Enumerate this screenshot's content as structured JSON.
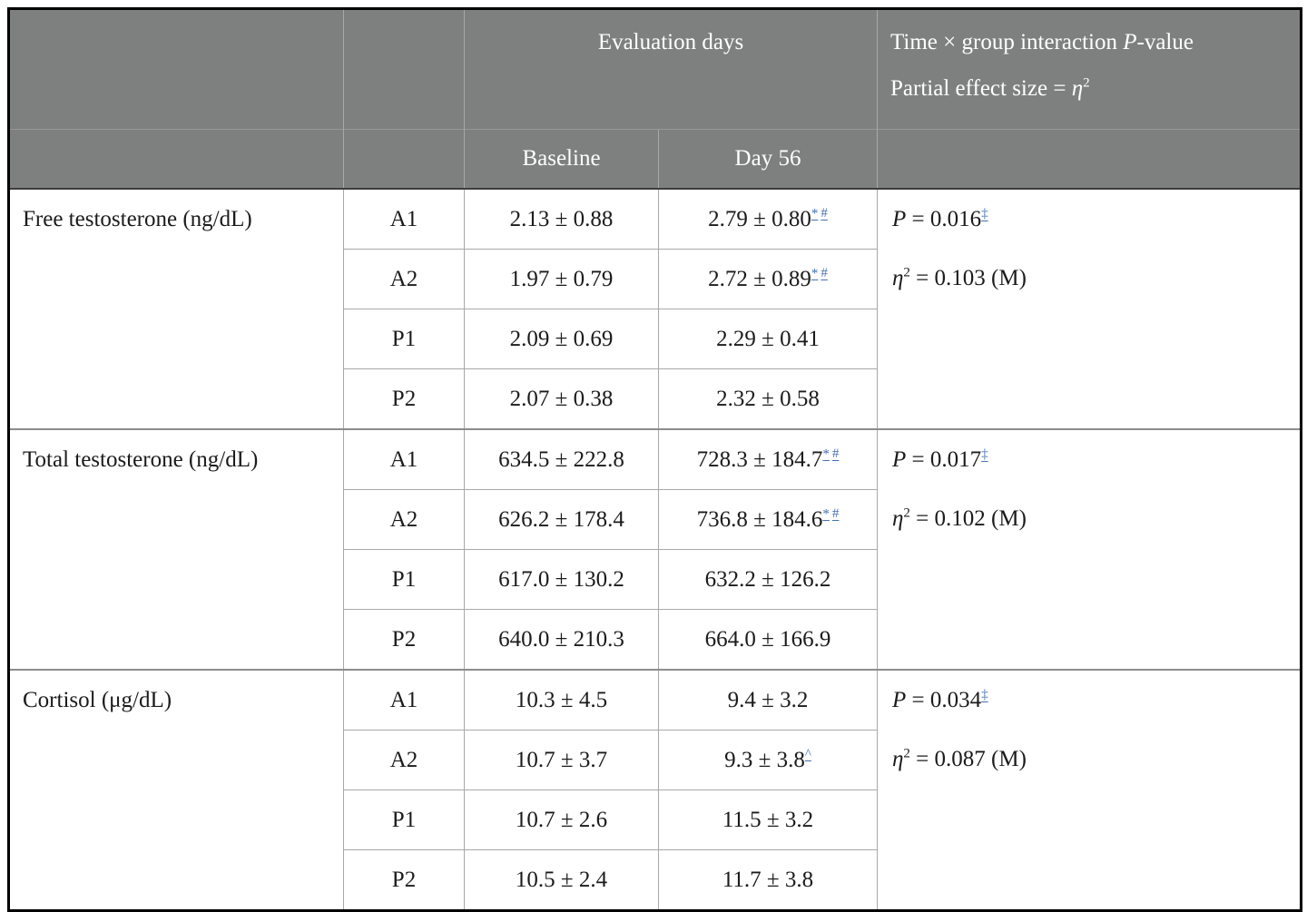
{
  "colors": {
    "header_bg": "#7e7f7f",
    "header_text": "#ffffff",
    "body_text": "#1b1b1b",
    "footnote_link_blue": "#4470b0",
    "grid_line": "#a8a8a8",
    "outer_border": "#000000"
  },
  "header": {
    "evaluation_days": "Evaluation days",
    "interaction_pre": "Time × group interaction ",
    "interaction_p": "P",
    "interaction_post": "-value",
    "effect_pre": "Partial effect size = ",
    "effect_eta": "η",
    "effect_exp": "2",
    "baseline": "Baseline",
    "day56": "Day 56"
  },
  "sections": [
    {
      "measure": "Free testosterone (ng/dL)",
      "p_label": "P",
      "p_rest": " = 0.016",
      "p_sup": "‡",
      "eta_label": "η",
      "eta_exp": "2",
      "eta_rest": " = 0.103 (M)",
      "rows": [
        {
          "group": "A1",
          "baseline": "2.13 ± 0.88",
          "day56": "2.79 ± 0.80",
          "day56_sup1": "*",
          "day56_sup2": "#"
        },
        {
          "group": "A2",
          "baseline": "1.97 ± 0.79",
          "day56": "2.72 ± 0.89",
          "day56_sup1": "*",
          "day56_sup2": "#"
        },
        {
          "group": "P1",
          "baseline": "2.09 ± 0.69",
          "day56": "2.29 ± 0.41"
        },
        {
          "group": "P2",
          "baseline": "2.07 ± 0.38",
          "day56": "2.32 ± 0.58"
        }
      ]
    },
    {
      "measure": "Total testosterone (ng/dL)",
      "p_label": "P",
      "p_rest": " = 0.017",
      "p_sup": "‡",
      "eta_label": "η",
      "eta_exp": "2",
      "eta_rest": " = 0.102 (M)",
      "rows": [
        {
          "group": "A1",
          "baseline": "634.5 ± 222.8",
          "day56": "728.3 ± 184.7",
          "day56_sup1": "*",
          "day56_sup2": "#"
        },
        {
          "group": "A2",
          "baseline": "626.2 ± 178.4",
          "day56": "736.8 ± 184.6",
          "day56_sup1": "*",
          "day56_sup2": "#"
        },
        {
          "group": "P1",
          "baseline": "617.0 ± 130.2",
          "day56": "632.2 ± 126.2"
        },
        {
          "group": "P2",
          "baseline": "640.0 ± 210.3",
          "day56": "664.0 ± 166.9"
        }
      ]
    },
    {
      "measure": "Cortisol (μg/dL)",
      "p_label": "P",
      "p_rest": " = 0.034",
      "p_sup": "‡",
      "eta_label": "η",
      "eta_exp": "2",
      "eta_rest": " = 0.087 (M)",
      "rows": [
        {
          "group": "A1",
          "baseline": "10.3 ± 4.5",
          "day56": "9.4 ± 3.2"
        },
        {
          "group": "A2",
          "baseline": "10.7 ± 3.7",
          "day56": "9.3 ± 3.8",
          "day56_sup1": "^"
        },
        {
          "group": "P1",
          "baseline": "10.7 ± 2.6",
          "day56": "11.5 ± 3.2"
        },
        {
          "group": "P2",
          "baseline": "10.5 ± 2.4",
          "day56": "11.7 ± 3.8"
        }
      ]
    }
  ]
}
